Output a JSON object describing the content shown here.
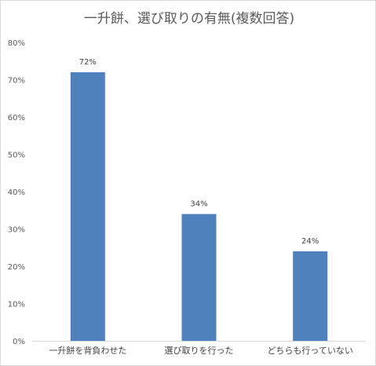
{
  "chart_data": {
    "type": "bar",
    "title": "一升餅、選び取りの有無(複数回答)",
    "categories": [
      "一升餅を背負わせた",
      "選び取りを行った",
      "どちらも行っていない"
    ],
    "values": [
      72,
      34,
      24
    ],
    "value_labels": [
      "72%",
      "34%",
      "24%"
    ],
    "ylim": [
      0,
      80
    ],
    "yticks": [
      0,
      10,
      20,
      30,
      40,
      50,
      60,
      70,
      80
    ],
    "ytick_labels": [
      "0%",
      "10%",
      "20%",
      "30%",
      "40%",
      "50%",
      "60%",
      "70%",
      "80%"
    ],
    "grid": false,
    "legend": "none",
    "bar_color": "#4f81bd"
  }
}
